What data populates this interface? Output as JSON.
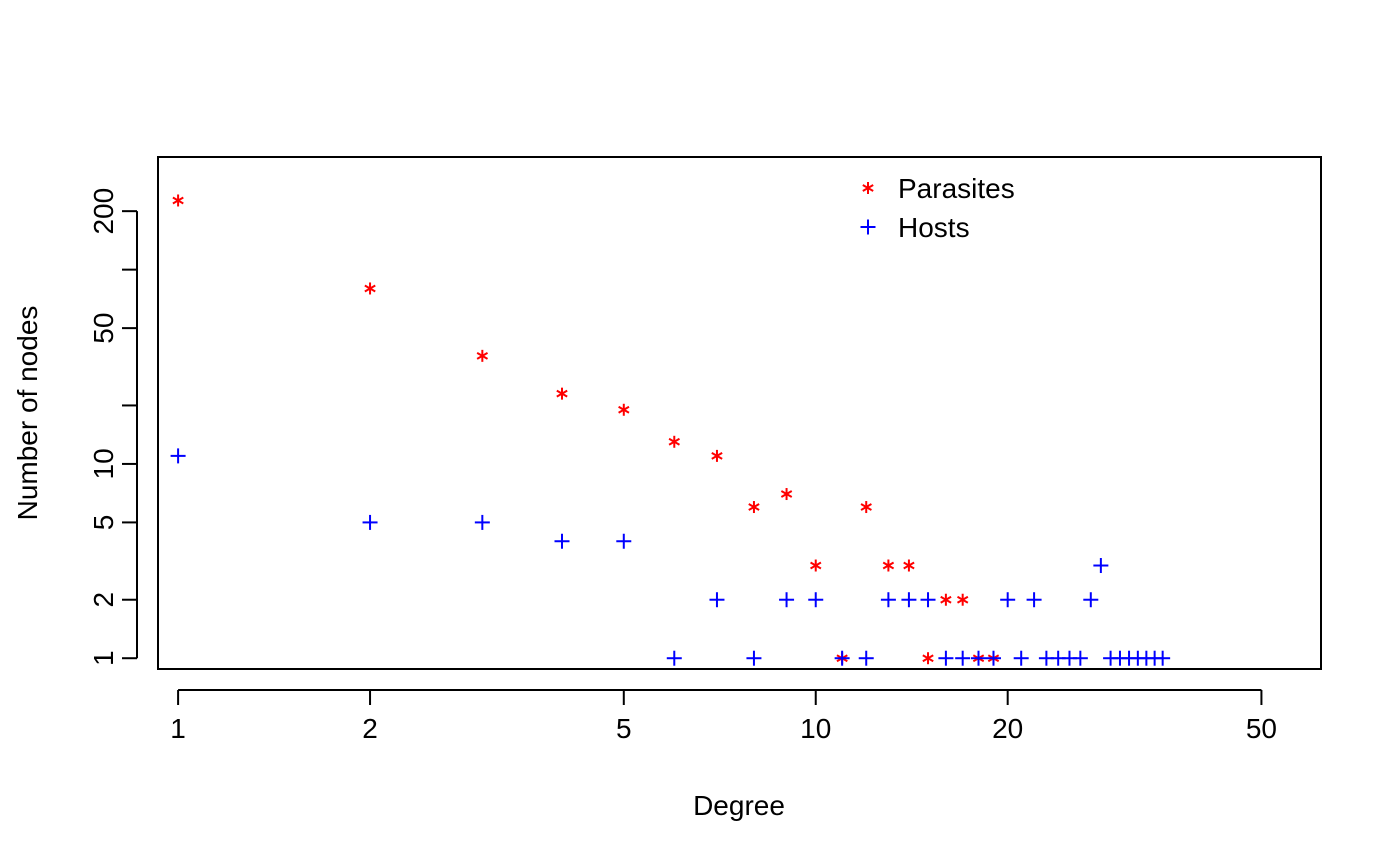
{
  "chart_data": {
    "type": "scatter",
    "title": "",
    "xlabel": "Degree",
    "ylabel": "Number of nodes",
    "x_scale": "log",
    "y_scale": "log",
    "xlim": [
      0.93,
      62
    ],
    "ylim": [
      0.88,
      380
    ],
    "x_ticks": [
      1,
      2,
      5,
      10,
      20,
      50
    ],
    "y_ticks": [
      1,
      2,
      5,
      10,
      20,
      50,
      100,
      200
    ],
    "x_tick_labels": [
      "1",
      "2",
      "5",
      "10",
      "20",
      "50"
    ],
    "y_tick_labels": [
      "1",
      "2",
      "5",
      "10",
      "",
      "50",
      "",
      "200"
    ],
    "grid": false,
    "legend_position": "top-center",
    "series": [
      {
        "name": "Parasites",
        "marker": "*",
        "color": "#ff0000",
        "points": [
          [
            1,
            227
          ],
          [
            2,
            80
          ],
          [
            3,
            36
          ],
          [
            4,
            23
          ],
          [
            5,
            19
          ],
          [
            6,
            13
          ],
          [
            7,
            11
          ],
          [
            8,
            6
          ],
          [
            9,
            7
          ],
          [
            10,
            3
          ],
          [
            11,
            1
          ],
          [
            12,
            6
          ],
          [
            13,
            3
          ],
          [
            14,
            3
          ],
          [
            15,
            1
          ],
          [
            16,
            2
          ],
          [
            17,
            2
          ],
          [
            18,
            1
          ],
          [
            19,
            1
          ]
        ]
      },
      {
        "name": "Hosts",
        "marker": "+",
        "color": "#0000ff",
        "points": [
          [
            1,
            11
          ],
          [
            2,
            5
          ],
          [
            3,
            5
          ],
          [
            4,
            4
          ],
          [
            5,
            4
          ],
          [
            6,
            1
          ],
          [
            7,
            2
          ],
          [
            8,
            1
          ],
          [
            9,
            2
          ],
          [
            10,
            2
          ],
          [
            11,
            1
          ],
          [
            12,
            1
          ],
          [
            13,
            2
          ],
          [
            14,
            2
          ],
          [
            15,
            2
          ],
          [
            16,
            1
          ],
          [
            17,
            1
          ],
          [
            18,
            1
          ],
          [
            19,
            1
          ],
          [
            20,
            2
          ],
          [
            21,
            1
          ],
          [
            22,
            2
          ],
          [
            23,
            1
          ],
          [
            24,
            1
          ],
          [
            25,
            1
          ],
          [
            26,
            1
          ],
          [
            27,
            2
          ],
          [
            28,
            3
          ],
          [
            29,
            1
          ],
          [
            30,
            1
          ],
          [
            31,
            1
          ],
          [
            32,
            1
          ],
          [
            33,
            1
          ],
          [
            34,
            1
          ],
          [
            35,
            1
          ]
        ]
      }
    ]
  }
}
